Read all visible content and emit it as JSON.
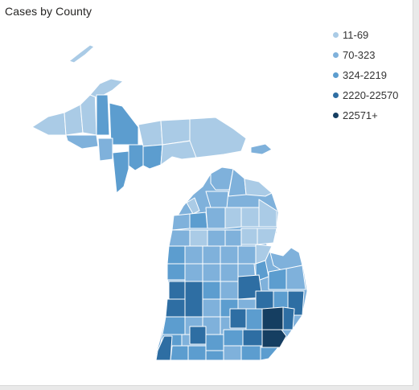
{
  "title": "Cases by County",
  "colors": {
    "c1": "#aacbe6",
    "c2": "#7fb1db",
    "c3": "#5c9dcf",
    "c4": "#2e6ea3",
    "c5": "#153e61"
  },
  "legend": {
    "items": [
      {
        "label": "11-69",
        "color": "#aacbe6"
      },
      {
        "label": "70-323",
        "color": "#7fb1db"
      },
      {
        "label": "324-2219",
        "color": "#5c9dcf"
      },
      {
        "label": "2220-22570",
        "color": "#2e6ea3"
      },
      {
        "label": "22571+",
        "color": "#153e61"
      }
    ]
  }
}
